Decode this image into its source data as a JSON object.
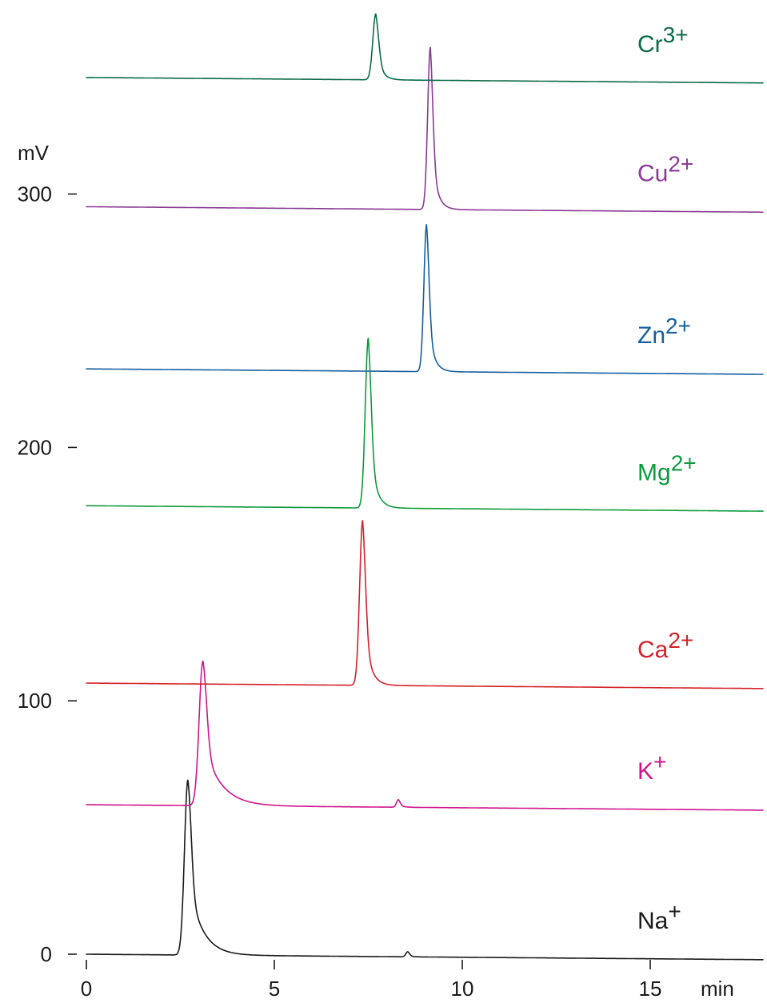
{
  "chart_data": {
    "type": "line",
    "title": "",
    "xlabel": "min",
    "ylabel": "mV",
    "xlim": [
      0,
      18
    ],
    "ylim": [
      -10,
      345
    ],
    "x_ticks": [
      0,
      5,
      10,
      15
    ],
    "x_tick_labels": [
      "0",
      "5",
      "10",
      "15"
    ],
    "y_ticks": [
      0,
      100,
      200,
      300
    ],
    "y_tick_labels": [
      "0",
      "100",
      "200",
      "300"
    ],
    "grid": false,
    "legend": "none",
    "series": [
      {
        "name": "Na",
        "charge": "+",
        "color": "#1a1a1a",
        "baseline": 0,
        "peaks": [
          {
            "t": 2.7,
            "height": 69,
            "rise": 0.09,
            "tail": 0.35
          },
          {
            "t": 8.55,
            "height": 2,
            "rise": 0.05,
            "tail": 0.08
          }
        ]
      },
      {
        "name": "K",
        "charge": "+",
        "color": "#d0148c",
        "baseline": 59,
        "peaks": [
          {
            "t": 3.1,
            "height": 57,
            "rise": 0.1,
            "tail": 0.45
          },
          {
            "t": 8.3,
            "height": 3,
            "rise": 0.05,
            "tail": 0.1
          }
        ]
      },
      {
        "name": "Ca",
        "charge": "2+",
        "color": "#d4202a",
        "baseline": 107,
        "peaks": [
          {
            "t": 7.35,
            "height": 65,
            "rise": 0.08,
            "tail": 0.16
          }
        ]
      },
      {
        "name": "Mg",
        "charge": "2+",
        "color": "#0e9a3e",
        "baseline": 177,
        "peaks": [
          {
            "t": 7.5,
            "height": 67,
            "rise": 0.08,
            "tail": 0.16
          }
        ]
      },
      {
        "name": "Zn",
        "charge": "2+",
        "color": "#155fa0",
        "baseline": 231,
        "peaks": [
          {
            "t": 9.05,
            "height": 58,
            "rise": 0.07,
            "tail": 0.14
          }
        ]
      },
      {
        "name": "Cu",
        "charge": "2+",
        "color": "#8a3a94",
        "baseline": 295,
        "peaks": [
          {
            "t": 9.15,
            "height": 64,
            "rise": 0.07,
            "tail": 0.14
          }
        ]
      },
      {
        "name": "Cr",
        "charge": "3+",
        "color": "#0b6b47",
        "baseline": 346,
        "peaks": [
          {
            "t": 7.7,
            "height": 26,
            "rise": 0.08,
            "tail": 0.14
          }
        ]
      }
    ]
  }
}
